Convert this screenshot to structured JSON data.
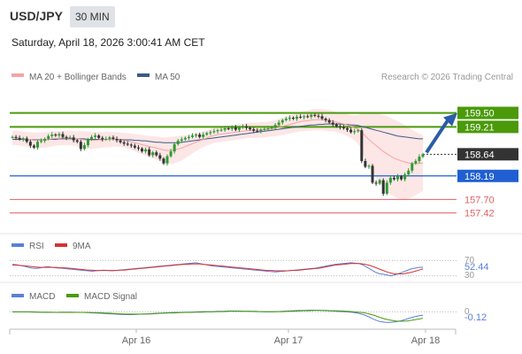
{
  "header": {
    "pair": "USD/JPY",
    "timeframe": "30 MIN",
    "datetime": "Saturday, April 18, 2026 3:00:41 AM CET"
  },
  "main_legend": {
    "ma20_label": "MA 20 + Bollinger Bands",
    "ma50_label": "MA 50",
    "credit": "Research © 2026 Trading Central"
  },
  "rsi_panel": {
    "rsi_label": "RSI",
    "ma_label": "9MA",
    "value_label": "52.44",
    "tick_70": "70",
    "tick_30": "30"
  },
  "macd_panel": {
    "macd_label": "MACD",
    "signal_label": "MACD Signal",
    "value_label": "-0.12",
    "tick_0": "0"
  },
  "colors": {
    "up": "#2e9b32",
    "down": "#333333",
    "ma20": "#f4a5a5",
    "ma50": "#3d5a8c",
    "band_fill": "#fde3e3",
    "green_level": "#4a9a0a",
    "blue_level": "#1f5fd1",
    "red_level": "#e06060",
    "current": "#333333",
    "rsi": "#5b7fd6",
    "rsi_ma": "#d93030",
    "macd": "#5b7fd6",
    "macd_signal": "#4a9a0a",
    "arrow": "#2a5ca8"
  },
  "chart_data": [
    {
      "type": "candlestick",
      "title": "USD/JPY",
      "x_labels": [
        "Apr 16",
        "Apr 17",
        "Apr 18"
      ],
      "ylim": [
        157.1,
        160.1
      ],
      "levels": [
        {
          "value": 159.5,
          "label": "159.50",
          "kind": "resistance"
        },
        {
          "value": 159.21,
          "label": "159.21",
          "kind": "resistance"
        },
        {
          "value": 158.64,
          "label": "158.64",
          "kind": "current"
        },
        {
          "value": 158.19,
          "label": "158.19",
          "kind": "pivot"
        },
        {
          "value": 157.7,
          "label": "157.70",
          "kind": "support"
        },
        {
          "value": 157.42,
          "label": "157.42",
          "kind": "support"
        }
      ],
      "close": [
        159.0,
        158.98,
        158.95,
        158.97,
        158.9,
        158.82,
        158.78,
        158.9,
        158.92,
        158.96,
        159.02,
        159.05,
        159.03,
        159.06,
        159.0,
        158.98,
        158.99,
        158.93,
        158.9,
        158.75,
        158.83,
        158.95,
        159.0,
        159.03,
        158.98,
        158.95,
        158.96,
        158.99,
        158.96,
        158.93,
        158.89,
        158.86,
        158.84,
        158.82,
        158.78,
        158.76,
        158.7,
        158.74,
        158.62,
        158.68,
        158.62,
        158.55,
        158.45,
        158.6,
        158.7,
        158.85,
        158.92,
        158.95,
        158.98,
        159.0,
        159.03,
        159.05,
        159.0,
        159.05,
        159.08,
        159.1,
        159.12,
        159.14,
        159.15,
        159.18,
        159.17,
        159.2,
        159.15,
        159.2,
        159.22,
        159.19,
        159.16,
        159.13,
        159.12,
        159.15,
        159.17,
        159.18,
        159.2,
        159.25,
        159.3,
        159.35,
        159.38,
        159.4,
        159.38,
        159.42,
        159.41,
        159.43,
        159.42,
        159.46,
        159.44,
        159.43,
        159.38,
        159.35,
        159.3,
        159.26,
        159.22,
        159.2,
        159.18,
        159.15,
        159.1,
        159.12,
        159.14,
        158.5,
        158.38,
        158.4,
        158.05,
        158.03,
        158.1,
        157.82,
        158.05,
        158.15,
        158.12,
        158.18,
        158.12,
        158.22,
        158.3,
        158.45,
        158.5,
        158.59,
        158.64
      ],
      "ma20_approx": [
        158.98,
        158.98,
        158.97,
        158.96,
        158.95,
        158.94,
        158.93,
        158.93,
        158.93,
        158.94,
        158.95,
        158.96,
        158.97,
        158.97,
        158.98,
        158.98,
        158.98,
        158.97,
        158.96,
        158.95,
        158.94,
        158.93,
        158.93,
        158.93,
        158.94,
        158.94,
        158.95,
        158.95,
        158.95,
        158.95,
        158.94,
        158.93,
        158.92,
        158.9,
        158.88,
        158.86,
        158.84,
        158.82,
        158.8,
        158.79,
        158.77,
        158.75,
        158.73,
        158.72,
        158.72,
        158.73,
        158.75,
        158.77,
        158.8,
        158.83,
        158.86,
        158.89,
        158.92,
        158.95,
        158.98,
        159.01,
        159.03,
        159.05,
        159.06,
        159.07,
        159.08,
        159.09,
        159.1,
        159.11,
        159.12,
        159.13,
        159.14,
        159.14,
        159.14,
        159.15,
        159.15,
        159.16,
        159.17,
        159.18,
        159.2,
        159.22,
        159.24,
        159.26,
        159.28,
        159.3,
        159.32,
        159.33,
        159.34,
        159.35,
        159.36,
        159.36,
        159.36,
        159.35,
        159.34,
        159.33,
        159.31,
        159.29,
        159.27,
        159.25,
        159.22,
        159.19,
        159.16,
        159.1,
        159.02,
        158.95,
        158.88,
        158.82,
        158.76,
        158.7,
        158.65,
        158.6,
        158.56,
        158.53,
        158.5,
        158.48,
        158.46,
        158.45,
        158.45,
        158.45,
        158.46
      ],
      "ma50_approx": [
        158.95,
        158.95,
        158.95,
        158.95,
        158.94,
        158.94,
        158.94,
        158.94,
        158.94,
        158.94,
        158.95,
        158.95,
        158.95,
        158.96,
        158.96,
        158.96,
        158.96,
        158.96,
        158.96,
        158.96,
        158.96,
        158.95,
        158.95,
        158.95,
        158.95,
        158.95,
        158.95,
        158.95,
        158.95,
        158.95,
        158.95,
        158.94,
        158.94,
        158.94,
        158.93,
        158.93,
        158.92,
        158.92,
        158.91,
        158.9,
        158.89,
        158.89,
        158.88,
        158.88,
        158.88,
        158.88,
        158.88,
        158.89,
        158.9,
        158.91,
        158.92,
        158.93,
        158.94,
        158.95,
        158.96,
        158.97,
        158.98,
        158.99,
        159.0,
        159.01,
        159.02,
        159.03,
        159.04,
        159.05,
        159.06,
        159.07,
        159.08,
        159.09,
        159.1,
        159.11,
        159.12,
        159.13,
        159.14,
        159.15,
        159.16,
        159.17,
        159.18,
        159.19,
        159.2,
        159.21,
        159.22,
        159.23,
        159.24,
        159.25,
        159.25,
        159.26,
        159.26,
        159.27,
        159.27,
        159.27,
        159.27,
        159.27,
        159.26,
        159.26,
        159.25,
        159.25,
        159.24,
        159.22,
        159.2,
        159.18,
        159.16,
        159.14,
        159.12,
        159.1,
        159.08,
        159.06,
        159.04,
        159.02,
        159.01,
        159.0,
        158.99,
        158.98,
        158.97,
        158.96,
        158.96
      ],
      "band_width_approx": [
        0.15,
        0.15,
        0.15,
        0.15,
        0.15,
        0.16,
        0.16,
        0.16,
        0.16,
        0.16,
        0.16,
        0.16,
        0.15,
        0.15,
        0.15,
        0.15,
        0.15,
        0.15,
        0.16,
        0.17,
        0.18,
        0.18,
        0.18,
        0.17,
        0.17,
        0.16,
        0.16,
        0.16,
        0.15,
        0.15,
        0.15,
        0.15,
        0.16,
        0.17,
        0.18,
        0.19,
        0.2,
        0.21,
        0.22,
        0.23,
        0.24,
        0.25,
        0.26,
        0.27,
        0.28,
        0.28,
        0.27,
        0.26,
        0.24,
        0.22,
        0.2,
        0.18,
        0.17,
        0.16,
        0.16,
        0.16,
        0.16,
        0.16,
        0.16,
        0.16,
        0.16,
        0.16,
        0.16,
        0.16,
        0.16,
        0.16,
        0.16,
        0.16,
        0.16,
        0.16,
        0.16,
        0.16,
        0.16,
        0.17,
        0.17,
        0.18,
        0.18,
        0.19,
        0.19,
        0.2,
        0.2,
        0.21,
        0.21,
        0.22,
        0.22,
        0.22,
        0.22,
        0.22,
        0.22,
        0.21,
        0.21,
        0.21,
        0.22,
        0.23,
        0.24,
        0.26,
        0.3,
        0.4,
        0.48,
        0.55,
        0.62,
        0.68,
        0.72,
        0.76,
        0.78,
        0.8,
        0.8,
        0.8,
        0.79,
        0.77,
        0.74,
        0.7,
        0.66,
        0.62,
        0.58
      ]
    },
    {
      "type": "line",
      "title": "RSI",
      "ylim": [
        20,
        80
      ],
      "ticks": [
        30,
        70
      ],
      "series": [
        {
          "name": "RSI",
          "values": [
            60,
            59,
            57,
            55,
            52,
            50,
            49,
            51,
            53,
            54,
            52,
            51,
            50,
            49,
            48,
            47,
            46,
            45,
            44,
            43,
            42,
            43,
            44,
            45,
            44,
            43,
            44,
            45,
            46,
            47,
            48,
            49,
            50,
            51,
            52,
            53,
            54,
            55,
            56,
            57,
            58,
            59,
            60,
            61,
            62,
            63,
            64,
            62,
            60,
            58,
            56,
            55,
            54,
            53,
            52,
            51,
            50,
            49,
            48,
            47,
            46,
            45,
            44,
            43,
            42,
            41,
            40,
            41,
            42,
            43,
            44,
            45,
            46,
            47,
            48,
            49,
            50,
            52,
            54,
            56,
            58,
            60,
            61,
            62,
            63,
            64,
            63,
            62,
            58,
            52,
            46,
            40,
            36,
            34,
            32,
            30,
            33,
            36,
            40,
            44,
            48,
            50,
            52,
            52.44
          ]
        },
        {
          "name": "9MA",
          "values": [
            58,
            58,
            57,
            56,
            55,
            54,
            53,
            52,
            52,
            52,
            52,
            52,
            51,
            51,
            50,
            49,
            48,
            47,
            46,
            45,
            45,
            44,
            44,
            44,
            44,
            44,
            44,
            45,
            45,
            46,
            47,
            48,
            49,
            50,
            51,
            52,
            53,
            54,
            55,
            56,
            57,
            58,
            59,
            60,
            60,
            61,
            61,
            61,
            60,
            59,
            58,
            57,
            56,
            55,
            54,
            53,
            52,
            51,
            50,
            49,
            48,
            47,
            46,
            45,
            44,
            44,
            43,
            43,
            43,
            43,
            44,
            44,
            45,
            46,
            47,
            48,
            49,
            50,
            52,
            54,
            56,
            58,
            59,
            60,
            61,
            62,
            62,
            62,
            61,
            59,
            56,
            52,
            48,
            44,
            40,
            37,
            35,
            35,
            35,
            37,
            39,
            42,
            45,
            48
          ]
        }
      ]
    },
    {
      "type": "line",
      "title": "MACD",
      "ylim": [
        -0.5,
        0.3
      ],
      "ticks": [
        0
      ],
      "series": [
        {
          "name": "MACD",
          "values": [
            0.0,
            0.0,
            0.0,
            0.0,
            -0.01,
            -0.01,
            -0.02,
            -0.02,
            -0.02,
            -0.01,
            -0.01,
            -0.01,
            -0.02,
            -0.02,
            -0.03,
            -0.04,
            -0.05,
            -0.06,
            -0.07,
            -0.08,
            -0.09,
            -0.1,
            -0.1,
            -0.09,
            -0.08,
            -0.07,
            -0.06,
            -0.05,
            -0.04,
            -0.03,
            -0.02,
            -0.02,
            -0.01,
            -0.01,
            0.0,
            0.01,
            0.01,
            0.01,
            0.02,
            0.02,
            0.03,
            0.03,
            0.03,
            0.02,
            0.02,
            0.01,
            0.01,
            0.0,
            0.0,
            0.01,
            0.02,
            0.03,
            0.04,
            0.05,
            0.05,
            0.06,
            0.06,
            0.05,
            0.04,
            0.03,
            0.02,
            0.01,
            0.0,
            -0.02,
            -0.05,
            -0.1,
            -0.18,
            -0.28,
            -0.35,
            -0.38,
            -0.38,
            -0.36,
            -0.32,
            -0.26,
            -0.2,
            -0.15,
            -0.12
          ]
        },
        {
          "name": "MACD Signal",
          "values": [
            0.0,
            0.0,
            0.0,
            0.0,
            0.0,
            -0.01,
            -0.01,
            -0.01,
            -0.02,
            -0.02,
            -0.02,
            -0.02,
            -0.02,
            -0.02,
            -0.02,
            -0.03,
            -0.03,
            -0.04,
            -0.05,
            -0.06,
            -0.07,
            -0.08,
            -0.08,
            -0.08,
            -0.08,
            -0.08,
            -0.07,
            -0.06,
            -0.05,
            -0.04,
            -0.04,
            -0.03,
            -0.02,
            -0.02,
            -0.01,
            -0.01,
            0.0,
            0.0,
            0.01,
            0.01,
            0.02,
            0.02,
            0.02,
            0.02,
            0.02,
            0.02,
            0.01,
            0.01,
            0.01,
            0.01,
            0.01,
            0.02,
            0.02,
            0.03,
            0.04,
            0.04,
            0.05,
            0.05,
            0.05,
            0.04,
            0.04,
            0.03,
            0.02,
            0.01,
            -0.01,
            -0.03,
            -0.07,
            -0.13,
            -0.2,
            -0.26,
            -0.3,
            -0.33,
            -0.34,
            -0.33,
            -0.3,
            -0.27,
            -0.23
          ]
        }
      ]
    }
  ]
}
